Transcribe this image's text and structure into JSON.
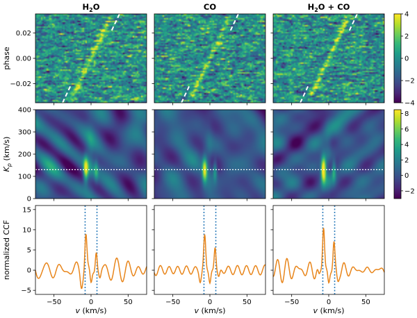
{
  "chart_data": {
    "type": "heatmap",
    "panel_titles": [
      {
        "pre": "H",
        "sub": "2",
        "post": "O"
      },
      {
        "pre": "CO",
        "sub": "",
        "post": ""
      },
      {
        "pre": "H",
        "sub": "2",
        "post": "O + CO"
      }
    ],
    "xlabel": {
      "main": "v",
      "unit": " (km/s)"
    },
    "xlim": [
      -75,
      75
    ],
    "xticks": [
      -50,
      0,
      50
    ],
    "xticklabels": [
      "−50",
      "0",
      "50"
    ],
    "rows": [
      {
        "type": "heatmap",
        "ylabel": "phase",
        "ylim": [
          -0.035,
          0.035
        ],
        "yticks": [
          0.02,
          0.0,
          -0.02
        ],
        "yticklabels": [
          "0.02",
          "0.00",
          "−0.02"
        ],
        "colorbar": {
          "min": -4,
          "max": 4,
          "ticks": [
            4,
            2,
            0,
            -2,
            -4
          ],
          "ticklabels": [
            "4",
            "2",
            "0",
            "−2",
            "−4"
          ]
        },
        "trail_guides": {
          "style": "white dashed",
          "kp": 130
        }
      },
      {
        "type": "heatmap",
        "ylabel": {
          "main": "K",
          "sub": "p",
          "unit": " (km/s)"
        },
        "ylim": [
          0,
          400
        ],
        "yticks": [
          400,
          300,
          200,
          100,
          0
        ],
        "yticklabels": [
          "400",
          "300",
          "200",
          "100",
          "0"
        ],
        "colorbar": {
          "min": -3,
          "max": 8.5,
          "ticks": [
            8,
            6,
            4,
            2,
            0,
            -2
          ],
          "ticklabels": [
            "8",
            "6",
            "4",
            "2",
            "0",
            "−2"
          ]
        },
        "reference_kp": 130
      },
      {
        "type": "line",
        "ylabel": "normalized CCF",
        "ylim": [
          -6,
          16
        ],
        "yticks": [
          15,
          10,
          5,
          0,
          -5
        ],
        "yticklabels": [
          "15",
          "10",
          "5",
          "0",
          "−5"
        ],
        "vlines": [
          -8,
          8
        ],
        "line_color": "#e8851a",
        "vline_color": "#2b7bba"
      }
    ],
    "series": [
      {
        "peak_main": 8.5,
        "peak_side": 4.9,
        "v_main": -7,
        "v_side": 7
      },
      {
        "peak_main": 8.6,
        "peak_side": 5.8,
        "v_main": -7,
        "v_side": 7
      },
      {
        "peak_main": 11.3,
        "peak_side": 6.4,
        "v_main": -7,
        "v_side": 7
      }
    ]
  }
}
